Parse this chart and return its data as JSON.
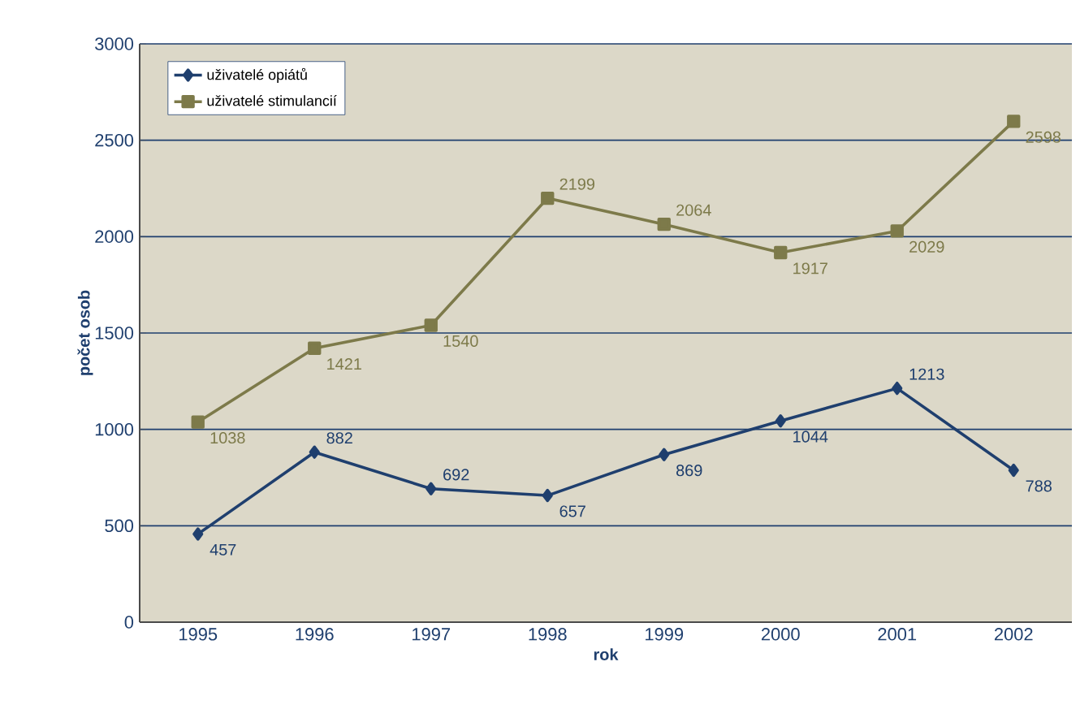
{
  "chart_data": {
    "type": "line",
    "xlabel": "rok",
    "ylabel": "počet osob",
    "categories": [
      "1995",
      "1996",
      "1997",
      "1998",
      "1999",
      "2000",
      "2001",
      "2002"
    ],
    "series": [
      {
        "name": "uživatelé opiátů",
        "color": "#1f3f6e",
        "marker": "diamond",
        "values": [
          457,
          882,
          692,
          657,
          869,
          1044,
          1213,
          788
        ]
      },
      {
        "name": "uživatelé stimulancií",
        "color": "#7d7a4a",
        "marker": "square",
        "values": [
          1038,
          1421,
          1540,
          2199,
          2064,
          1917,
          2029,
          2598
        ]
      }
    ],
    "ylim": [
      0,
      3000
    ],
    "yticks": [
      0,
      500,
      1000,
      1500,
      2000,
      2500,
      3000
    ],
    "grid": "y",
    "legend": "top left",
    "data_labels": true
  }
}
